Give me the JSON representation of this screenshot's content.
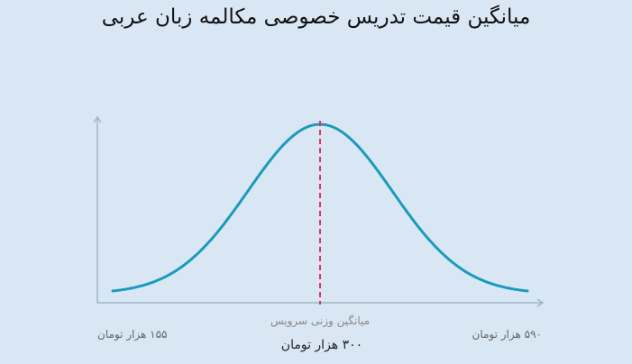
{
  "title": "میانگین قیمت تدریس خصوصی مکالمه زبان عربی",
  "chart_data": {
    "type": "area",
    "curve": "bell",
    "min_label": "۱۵۵ هزار تومان",
    "max_label": "۵۹۰ هزار تومان",
    "mean_caption": "میانگین وزنی سرویس",
    "mean_label": "۳۰۰ هزار تومان",
    "x_min": 155,
    "x_max": 590,
    "mean": 300,
    "unit": "هزار تومان",
    "colors": {
      "curve": "#1a9bbb",
      "mean_line": "#e0335f",
      "axis": "#9bb5c7",
      "background": "#d9e7f5"
    }
  }
}
